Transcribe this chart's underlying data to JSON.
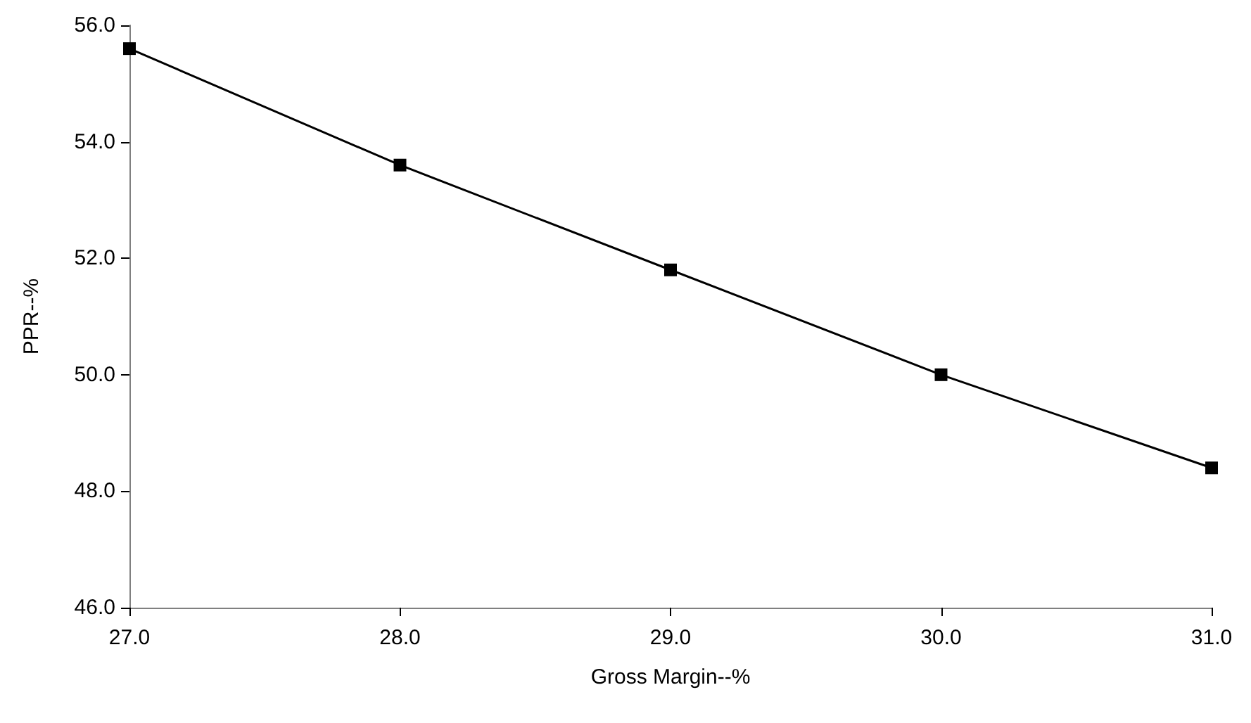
{
  "chart_data": {
    "type": "line",
    "xlabel": "Gross Margin--%",
    "ylabel": "PPR--%",
    "x": [
      27,
      28,
      29,
      30,
      31
    ],
    "series": [
      {
        "color": "#000000",
        "values": [
          55.6,
          53.6,
          51.8,
          50.0,
          48.4
        ]
      }
    ],
    "xlim": [
      27,
      31
    ],
    "xticks": [
      {
        "value": 27,
        "label": "27.0"
      },
      {
        "value": 28,
        "label": "28.0"
      },
      {
        "value": 29,
        "label": "29.0"
      },
      {
        "value": 30,
        "label": "30.0"
      },
      {
        "value": 31,
        "label": "31.0"
      }
    ],
    "ylim": [
      46,
      56
    ],
    "yticks": [
      {
        "value": 46,
        "label": "46.0"
      },
      {
        "value": 48,
        "label": "48.0"
      },
      {
        "value": 50,
        "label": "50.0"
      },
      {
        "value": 52,
        "label": "52.0"
      },
      {
        "value": 54,
        "label": "54.0"
      },
      {
        "value": 56,
        "label": "56.0"
      }
    ],
    "grid": false,
    "marker": "square",
    "line_style": "solid"
  }
}
